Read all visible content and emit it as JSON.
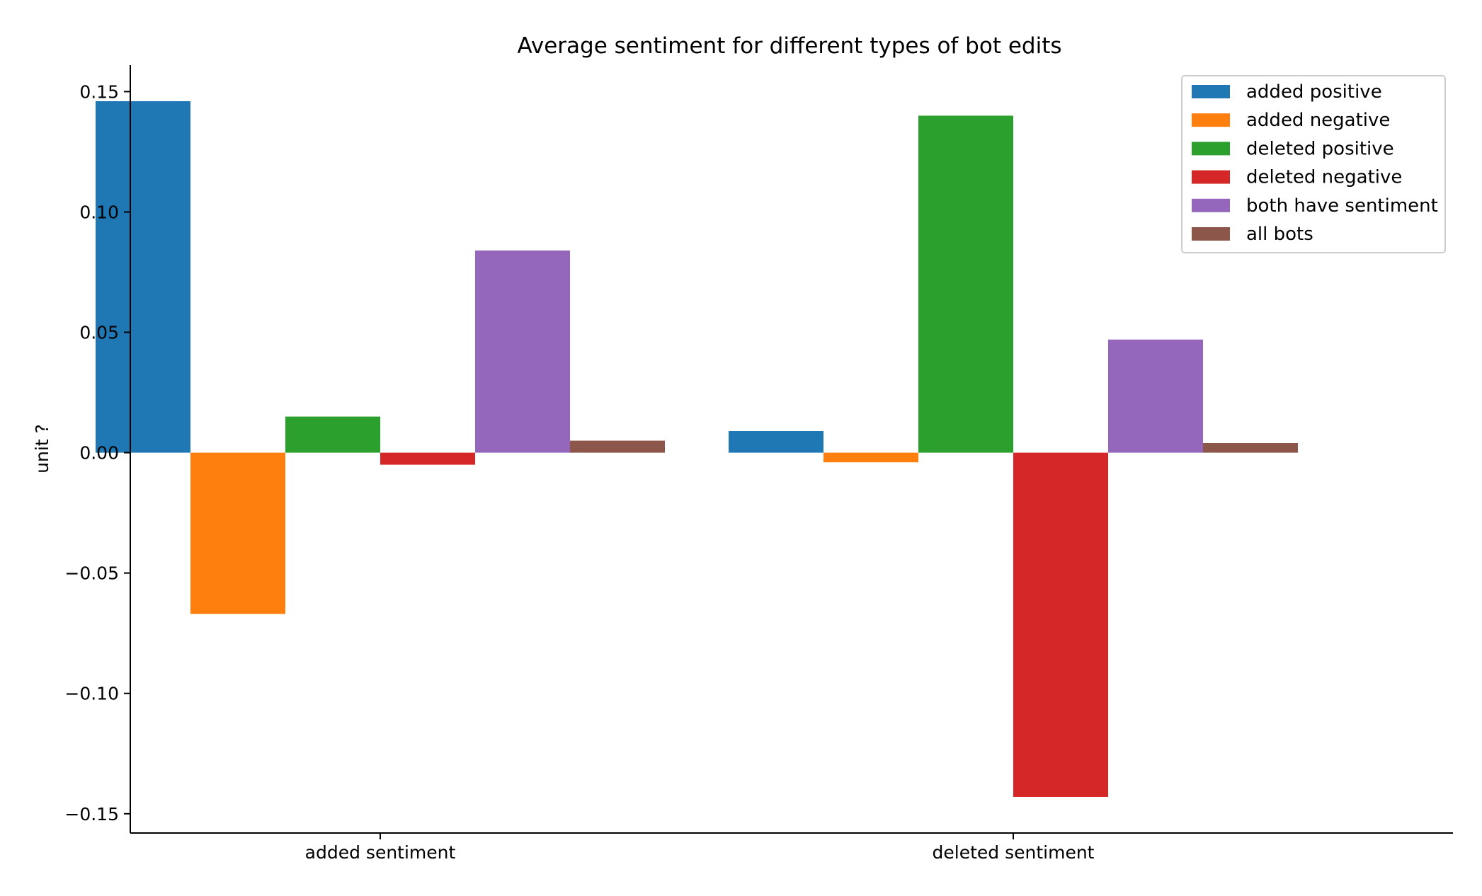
{
  "chart_data": {
    "type": "bar",
    "title": "Average sentiment for different types of bot edits",
    "xlabel": "",
    "ylabel": "unit ?",
    "categories": [
      "added sentiment",
      "deleted sentiment"
    ],
    "series": [
      {
        "name": "added positive",
        "color": "#1f77b4",
        "values": [
          0.146,
          0.009
        ]
      },
      {
        "name": "added negative",
        "color": "#ff7f0e",
        "values": [
          -0.067,
          -0.004
        ]
      },
      {
        "name": "deleted positive",
        "color": "#2ca02c",
        "values": [
          0.015,
          0.14
        ]
      },
      {
        "name": "deleted negative",
        "color": "#d62728",
        "values": [
          -0.005,
          -0.143
        ]
      },
      {
        "name": "both have sentiment",
        "color": "#9467bd",
        "values": [
          0.084,
          0.047
        ]
      },
      {
        "name": "all bots",
        "color": "#8c564b",
        "values": [
          0.005,
          0.004
        ]
      }
    ],
    "ylim": [
      -0.158,
      0.161
    ],
    "yticks": [
      0.15,
      0.1,
      0.05,
      0.0,
      -0.05,
      -0.1,
      -0.15
    ],
    "ytick_labels": [
      "0.15",
      "0.10",
      "0.05",
      "0.00",
      "−0.05",
      "−0.10",
      "−0.15"
    ],
    "grid": false,
    "legend_position": "top-right"
  }
}
